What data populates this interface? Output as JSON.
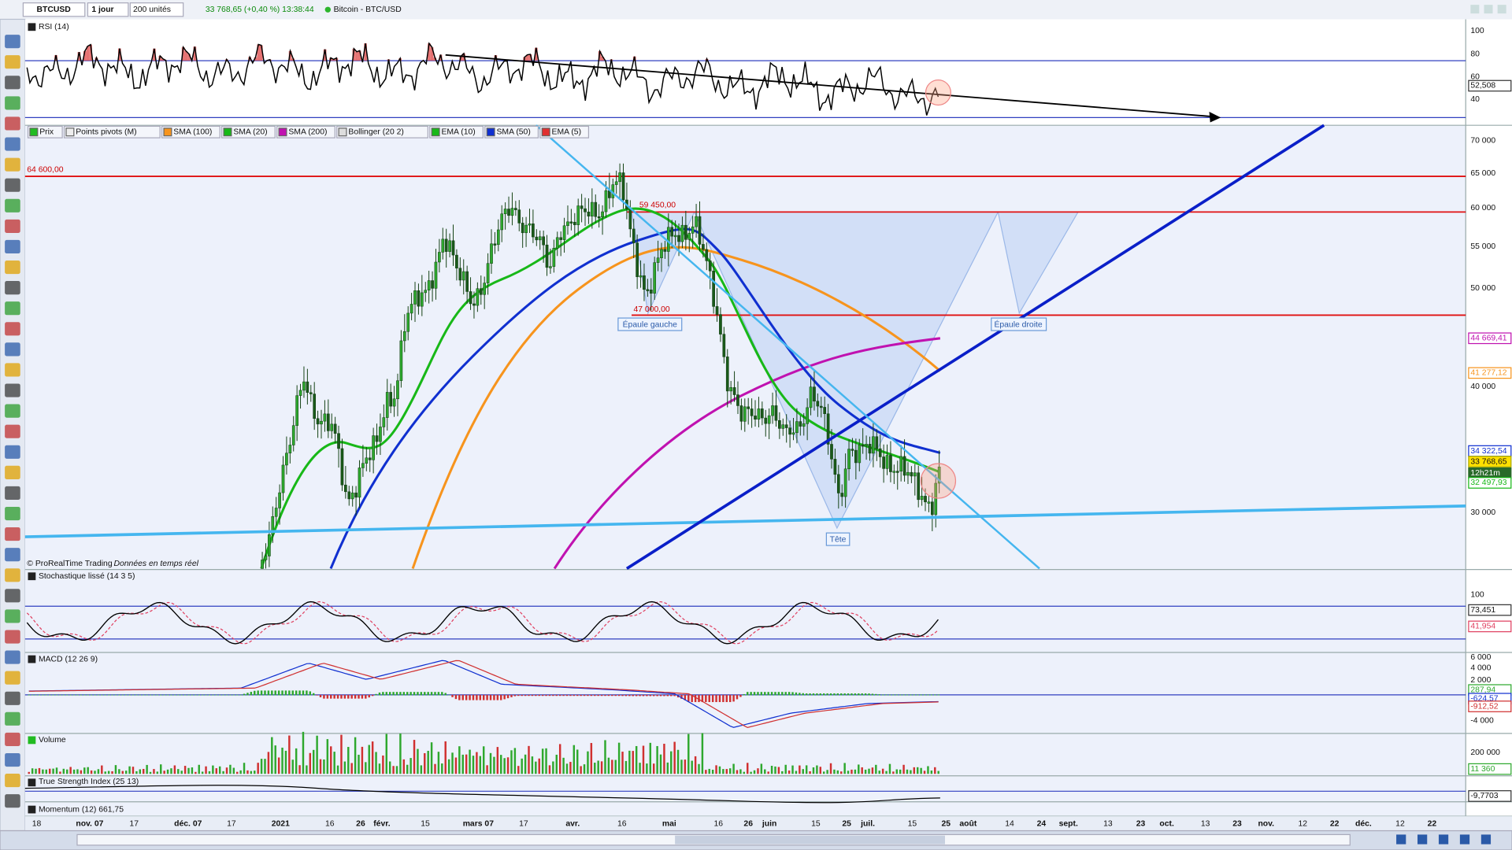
{
  "toolbar": {
    "symbol": "BTCUSD",
    "period": "1 jour",
    "units": "200 unités",
    "quote": "33 768,65 (+0,40 %) 13:38:44",
    "name": "Bitcoin - BTC/USD"
  },
  "rsi": {
    "label": "RSI (14)",
    "ticks": [
      "100",
      "80",
      "60",
      "52,508",
      "40"
    ]
  },
  "price": {
    "legend": [
      "Prix",
      "Points pivots (M)",
      "SMA (100)",
      "SMA (20)",
      "SMA (200)",
      "Bollinger (20 2)",
      "EMA (10)",
      "SMA (50)",
      "EMA (5)"
    ],
    "ticks": [
      "70 000",
      "65 000",
      "60 000",
      "55 000",
      "50 000",
      "44 669,41",
      "41 277,12",
      "40 000",
      "34 322,54",
      "33 768,65",
      "12h21m",
      "32 497,93",
      "30 000"
    ],
    "levels": [
      "64 600,00",
      "59 450,00",
      "47 000,00"
    ],
    "annotations": [
      "Épaule gauche",
      "Épaule droite",
      "Tête"
    ],
    "credit": "© ProRealTime Trading",
    "realtime": "Données en temps réel"
  },
  "stoch": {
    "label": "Stochastique lissé (14 3 5)",
    "ticks": [
      "100",
      "73,451",
      "41,954"
    ]
  },
  "macd": {
    "label": "MACD (12 26 9)",
    "ticks": [
      "6 000",
      "4 000",
      "2 000",
      "287,94",
      "-624,57",
      "-912,52",
      "-4 000"
    ]
  },
  "volume": {
    "label": "Volume",
    "ticks": [
      "200 000",
      "11 360"
    ]
  },
  "tsi": {
    "label": "True Strength Index (25 13)",
    "ticks": [
      "-9,7703"
    ]
  },
  "momentum": {
    "label": "Momentum (12) 661,75"
  },
  "xaxis": [
    "18",
    "nov. 07",
    "17",
    "déc. 07",
    "17",
    "2021",
    "16",
    "26",
    "févr.",
    "15",
    "mars 07",
    "17",
    "avr.",
    "16",
    "mai",
    "16",
    "26",
    "juin",
    "15",
    "25",
    "juil.",
    "15",
    "25",
    "août",
    "14",
    "24",
    "sept.",
    "13",
    "23",
    "oct.",
    "13",
    "23",
    "nov.",
    "12",
    "22",
    "déc.",
    "12",
    "22"
  ]
}
